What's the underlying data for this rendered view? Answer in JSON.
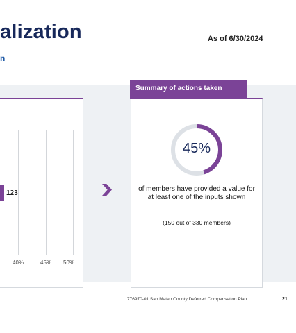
{
  "header": {
    "title": "alization",
    "subtitle": "n",
    "as_of": "As of 6/30/2024"
  },
  "chart": {
    "bar_value_label": "123",
    "ticks": [
      "40%",
      "45%",
      "50%"
    ]
  },
  "chart_data": {
    "type": "bar",
    "orientation": "horizontal",
    "values": [
      123
    ],
    "x_ticks": [
      "40%",
      "45%",
      "50%"
    ]
  },
  "summary": {
    "tab_label": "Summary of actions taken",
    "percent_label": "45%",
    "percent_value": 0.45,
    "description": "of members have provided a value for at least one of the inputs shown",
    "count": "(150 out of 330 members)"
  },
  "footer": {
    "text": "776970-01 San Mateo County Deferred Compensation Plan",
    "page": "21"
  },
  "colors": {
    "accent": "#7b4397",
    "navy": "#17285a",
    "ring_track": "#dde1e6"
  }
}
